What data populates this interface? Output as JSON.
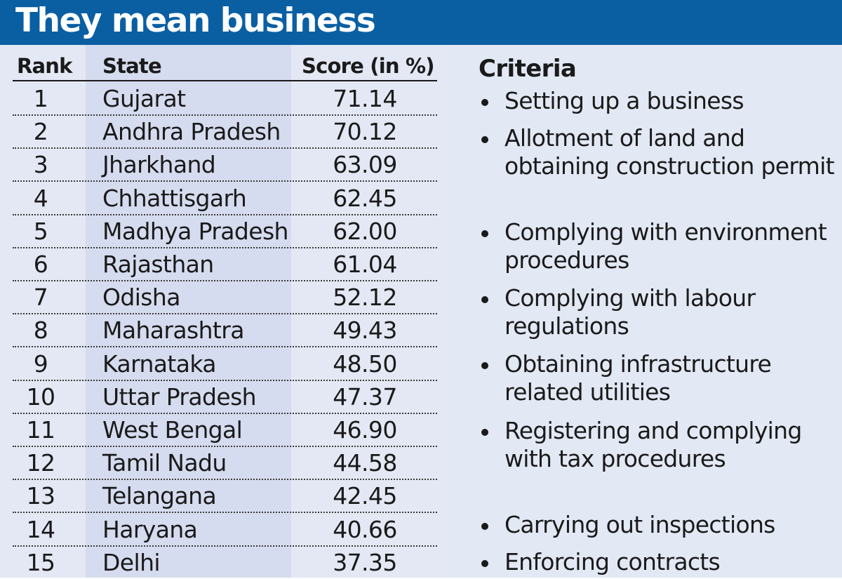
{
  "title": "They mean business",
  "table": {
    "headers": {
      "rank": "Rank",
      "state": "State",
      "score": "Score (in %)"
    }
  },
  "criteria": {
    "title": "Criteria",
    "items": [
      "Setting up a business",
      "Allotment of land and obtaining construction permit",
      "Complying with environment procedures",
      "Complying with labour regulations",
      "Obtaining infrastructure related utilities",
      "Registering and complying with tax procedures",
      "Carrying out inspections",
      "Enforcing contracts"
    ]
  },
  "colors": {
    "banner": "#0a5fa3",
    "panel": "#e3e8f4",
    "state_column": "#d6dcef"
  },
  "chart_data": {
    "type": "table",
    "title": "They mean business",
    "columns": [
      "Rank",
      "State",
      "Score (in %)"
    ],
    "rows": [
      {
        "rank": "1",
        "state": "Gujarat",
        "score": "71.14"
      },
      {
        "rank": "2",
        "state": "Andhra Pradesh",
        "score": "70.12"
      },
      {
        "rank": "3",
        "state": "Jharkhand",
        "score": "63.09"
      },
      {
        "rank": "4",
        "state": "Chhattisgarh",
        "score": "62.45"
      },
      {
        "rank": "5",
        "state": "Madhya Pradesh",
        "score": "62.00"
      },
      {
        "rank": "6",
        "state": "Rajasthan",
        "score": "61.04"
      },
      {
        "rank": "7",
        "state": "Odisha",
        "score": "52.12"
      },
      {
        "rank": "8",
        "state": "Maharashtra",
        "score": "49.43"
      },
      {
        "rank": "9",
        "state": "Karnataka",
        "score": "48.50"
      },
      {
        "rank": "10",
        "state": "Uttar Pradesh",
        "score": "47.37"
      },
      {
        "rank": "11",
        "state": "West Bengal",
        "score": "46.90"
      },
      {
        "rank": "12",
        "state": "Tamil Nadu",
        "score": "44.58"
      },
      {
        "rank": "13",
        "state": "Telangana",
        "score": "42.45"
      },
      {
        "rank": "14",
        "state": "Haryana",
        "score": "40.66"
      },
      {
        "rank": "15",
        "state": "Delhi",
        "score": "37.35"
      }
    ]
  }
}
